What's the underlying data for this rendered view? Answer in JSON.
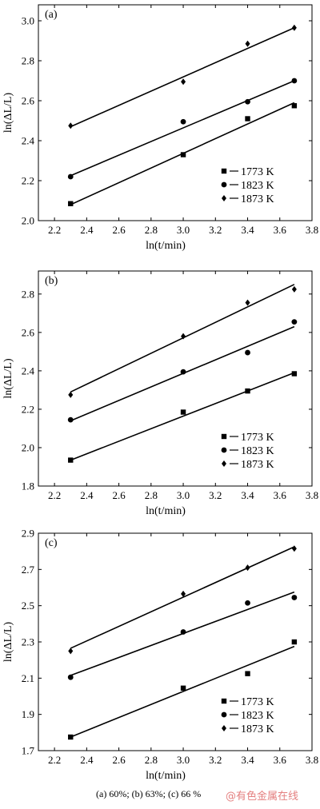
{
  "caption": "(a) 60%; (b) 63%; (c) 66 %",
  "watermark": "@有色金属在线",
  "chart_data": [
    {
      "type": "scatter",
      "panel_label": "(a)",
      "xlabel": "ln(t/min)",
      "ylabel": "ln(ΔL/L)",
      "xlim": [
        2.1,
        3.8
      ],
      "ylim": [
        2.0,
        3.08
      ],
      "xticks": [
        2.2,
        2.4,
        2.6,
        2.8,
        3.0,
        3.2,
        3.4,
        3.6,
        3.8
      ],
      "yticks": [
        2.0,
        2.2,
        2.4,
        2.6,
        2.8,
        3.0
      ],
      "legend_position": "bottom-right",
      "series": [
        {
          "name": "1773 K",
          "marker": "square",
          "x": [
            2.3,
            3.0,
            3.4,
            3.69
          ],
          "y": [
            2.085,
            2.33,
            2.51,
            2.575
          ],
          "fit": [
            [
              2.3,
              2.08
            ],
            [
              3.69,
              2.59
            ]
          ]
        },
        {
          "name": "1823 K",
          "marker": "circle",
          "x": [
            2.3,
            3.0,
            3.4,
            3.69
          ],
          "y": [
            2.22,
            2.495,
            2.595,
            2.7
          ],
          "fit": [
            [
              2.3,
              2.225
            ],
            [
              3.69,
              2.7
            ]
          ]
        },
        {
          "name": "1873 K",
          "marker": "diamond",
          "x": [
            2.3,
            3.0,
            3.4,
            3.69
          ],
          "y": [
            2.475,
            2.695,
            2.885,
            2.965
          ],
          "fit": [
            [
              2.3,
              2.47
            ],
            [
              3.69,
              2.965
            ]
          ]
        }
      ]
    },
    {
      "type": "scatter",
      "panel_label": "(b)",
      "xlabel": "ln(t/min)",
      "ylabel": "ln(ΔL/L)",
      "xlim": [
        2.1,
        3.8
      ],
      "ylim": [
        1.8,
        2.92
      ],
      "xticks": [
        2.2,
        2.4,
        2.6,
        2.8,
        3.0,
        3.2,
        3.4,
        3.6,
        3.8
      ],
      "yticks": [
        1.8,
        2.0,
        2.2,
        2.4,
        2.6,
        2.8
      ],
      "legend_position": "bottom-right",
      "series": [
        {
          "name": "1773 K",
          "marker": "square",
          "x": [
            2.3,
            3.0,
            3.4,
            3.69
          ],
          "y": [
            1.935,
            2.185,
            2.295,
            2.385
          ],
          "fit": [
            [
              2.3,
              1.935
            ],
            [
              3.69,
              2.39
            ]
          ]
        },
        {
          "name": "1823 K",
          "marker": "circle",
          "x": [
            2.3,
            3.0,
            3.4,
            3.69
          ],
          "y": [
            2.145,
            2.395,
            2.495,
            2.655
          ],
          "fit": [
            [
              2.3,
              2.14
            ],
            [
              3.69,
              2.63
            ]
          ]
        },
        {
          "name": "1873 K",
          "marker": "diamond",
          "x": [
            2.3,
            3.0,
            3.4,
            3.69
          ],
          "y": [
            2.275,
            2.58,
            2.755,
            2.825
          ],
          "fit": [
            [
              2.3,
              2.29
            ],
            [
              3.69,
              2.85
            ]
          ]
        }
      ]
    },
    {
      "type": "scatter",
      "panel_label": "(c)",
      "xlabel": "ln(t/min)",
      "ylabel": "ln(ΔL/L)",
      "xlim": [
        2.1,
        3.8
      ],
      "ylim": [
        1.7,
        2.9
      ],
      "xticks": [
        2.2,
        2.4,
        2.6,
        2.8,
        3.0,
        3.2,
        3.4,
        3.6,
        3.8
      ],
      "yticks": [
        1.7,
        1.9,
        2.1,
        2.3,
        2.5,
        2.7,
        2.9
      ],
      "legend_position": "bottom-right",
      "series": [
        {
          "name": "1773 K",
          "marker": "square",
          "x": [
            2.3,
            3.0,
            3.4,
            3.69
          ],
          "y": [
            1.775,
            2.045,
            2.125,
            2.3
          ],
          "fit": [
            [
              2.3,
              1.775
            ],
            [
              3.69,
              2.275
            ]
          ]
        },
        {
          "name": "1823 K",
          "marker": "circle",
          "x": [
            2.3,
            3.0,
            3.4,
            3.69
          ],
          "y": [
            2.105,
            2.355,
            2.515,
            2.545
          ],
          "fit": [
            [
              2.3,
              2.115
            ],
            [
              3.69,
              2.575
            ]
          ]
        },
        {
          "name": "1873 K",
          "marker": "diamond",
          "x": [
            2.3,
            3.0,
            3.4,
            3.69
          ],
          "y": [
            2.25,
            2.565,
            2.71,
            2.815
          ],
          "fit": [
            [
              2.3,
              2.265
            ],
            [
              3.69,
              2.825
            ]
          ]
        }
      ]
    }
  ]
}
